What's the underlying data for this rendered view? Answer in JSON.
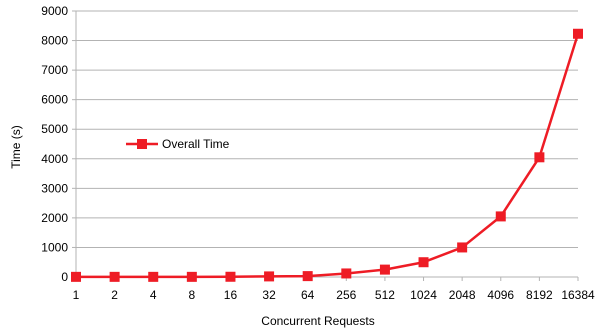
{
  "chart_data": {
    "type": "line",
    "title": "",
    "xlabel": "Concurrent Requests",
    "ylabel": "Time (s)",
    "categories": [
      "1",
      "2",
      "4",
      "8",
      "16",
      "32",
      "64",
      "256",
      "512",
      "1024",
      "2048",
      "4096",
      "8192",
      "16384"
    ],
    "series": [
      {
        "name": "Overall Time",
        "values": [
          5,
          5,
          5,
          5,
          8,
          20,
          30,
          120,
          250,
          500,
          1000,
          2050,
          4050,
          8230
        ]
      }
    ],
    "ylim": [
      0,
      9000
    ],
    "yticks": [
      0,
      1000,
      2000,
      3000,
      4000,
      5000,
      6000,
      7000,
      8000,
      9000
    ],
    "grid": "horizontal",
    "legend": "left-middle",
    "color": "#ee1c25",
    "marker": "square"
  }
}
